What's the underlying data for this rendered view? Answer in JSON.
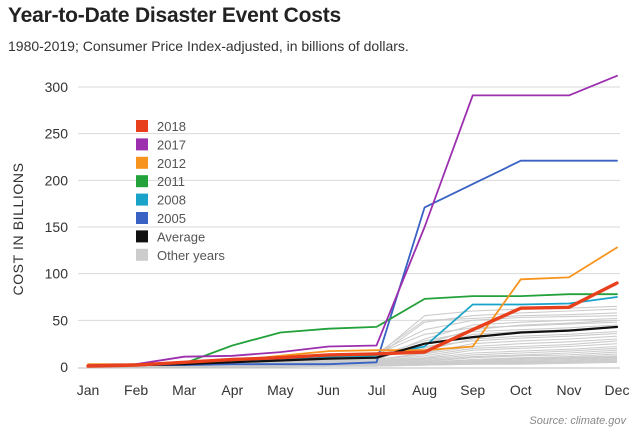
{
  "header": {
    "title": "Year-to-Date Disaster Event Costs",
    "subtitle": "1980-2019; Consumer Price Index-adjusted, in billions of dollars.",
    "source": "Source: climate.gov"
  },
  "chart_data": {
    "type": "line",
    "title": "Year-to-Date Disaster Event Costs",
    "xlabel": "",
    "ylabel": "COST IN BILLIONS",
    "ylim": [
      0,
      310
    ],
    "yticks": [
      0,
      50,
      100,
      150,
      200,
      250,
      300
    ],
    "grid": true,
    "legend_position": "upper-left",
    "categories": [
      "Jan",
      "Feb",
      "Mar",
      "Apr",
      "May",
      "Jun",
      "Jul",
      "Aug",
      "Sep",
      "Oct",
      "Nov",
      "Dec"
    ],
    "series": [
      {
        "name": "2018",
        "color": "#e8401c",
        "values": [
          1,
          2,
          5,
          8,
          10,
          13,
          14,
          16,
          40,
          63,
          64,
          90
        ]
      },
      {
        "name": "2017",
        "color": "#9b2fae",
        "values": [
          2,
          3,
          11,
          12,
          16,
          22,
          23,
          150,
          291,
          291,
          291,
          312
        ]
      },
      {
        "name": "2012",
        "color": "#f7941d",
        "values": [
          3,
          3,
          4,
          7,
          12,
          17,
          18,
          18,
          22,
          94,
          96,
          128
        ]
      },
      {
        "name": "2011",
        "color": "#23a13a",
        "values": [
          1,
          3,
          4,
          23,
          37,
          41,
          43,
          73,
          76,
          76,
          78,
          78
        ]
      },
      {
        "name": "2008",
        "color": "#1aa3c8",
        "values": [
          1,
          2,
          3,
          6,
          8,
          11,
          12,
          22,
          67,
          67,
          68,
          75
        ]
      },
      {
        "name": "2005",
        "color": "#3a62c4",
        "values": [
          1,
          2,
          2,
          3,
          3,
          3,
          5,
          171,
          196,
          221,
          221,
          221
        ]
      },
      {
        "name": "Average",
        "color": "#111111",
        "values": [
          1,
          2,
          3,
          5,
          7,
          9,
          10,
          25,
          32,
          37,
          39,
          43
        ]
      }
    ],
    "other_years_label": "Other years",
    "other_years_color": "#cccccc",
    "other_years": [
      [
        2,
        3,
        4,
        6,
        8,
        10,
        12,
        55,
        60,
        62,
        63,
        65
      ],
      [
        1,
        2,
        3,
        5,
        7,
        9,
        11,
        48,
        55,
        58,
        60,
        62
      ],
      [
        1,
        2,
        4,
        7,
        9,
        12,
        14,
        50,
        52,
        55,
        56,
        58
      ],
      [
        2,
        3,
        5,
        8,
        10,
        12,
        15,
        40,
        50,
        53,
        54,
        55
      ],
      [
        1,
        2,
        3,
        4,
        6,
        8,
        9,
        30,
        45,
        48,
        50,
        52
      ],
      [
        1,
        2,
        3,
        5,
        6,
        7,
        8,
        25,
        40,
        45,
        47,
        50
      ],
      [
        0,
        1,
        2,
        4,
        6,
        8,
        10,
        20,
        35,
        38,
        40,
        42
      ],
      [
        1,
        2,
        3,
        5,
        7,
        9,
        11,
        18,
        30,
        33,
        35,
        38
      ],
      [
        0,
        1,
        2,
        3,
        5,
        7,
        8,
        15,
        25,
        28,
        30,
        33
      ],
      [
        1,
        1,
        2,
        3,
        4,
        6,
        7,
        14,
        22,
        25,
        27,
        30
      ],
      [
        0,
        1,
        2,
        3,
        4,
        5,
        6,
        12,
        20,
        22,
        24,
        28
      ],
      [
        1,
        1,
        2,
        3,
        4,
        5,
        6,
        10,
        18,
        20,
        22,
        25
      ],
      [
        0,
        1,
        1,
        2,
        3,
        4,
        5,
        9,
        15,
        17,
        19,
        22
      ],
      [
        0,
        1,
        1,
        2,
        3,
        4,
        5,
        8,
        13,
        15,
        17,
        20
      ],
      [
        0,
        0,
        1,
        2,
        2,
        3,
        4,
        7,
        11,
        13,
        15,
        18
      ],
      [
        0,
        0,
        1,
        1,
        2,
        3,
        4,
        6,
        10,
        12,
        13,
        16
      ],
      [
        0,
        0,
        1,
        1,
        2,
        2,
        3,
        5,
        8,
        10,
        11,
        14
      ],
      [
        0,
        0,
        1,
        1,
        2,
        2,
        3,
        5,
        7,
        9,
        10,
        12
      ],
      [
        0,
        0,
        0,
        1,
        1,
        2,
        2,
        4,
        6,
        8,
        9,
        11
      ],
      [
        0,
        0,
        0,
        1,
        1,
        2,
        2,
        4,
        5,
        7,
        8,
        10
      ],
      [
        0,
        0,
        0,
        1,
        1,
        1,
        2,
        3,
        5,
        6,
        7,
        9
      ],
      [
        0,
        0,
        0,
        1,
        1,
        1,
        2,
        3,
        4,
        5,
        6,
        8
      ],
      [
        0,
        0,
        0,
        0,
        1,
        1,
        1,
        3,
        4,
        5,
        5,
        7
      ],
      [
        0,
        0,
        0,
        0,
        1,
        1,
        1,
        2,
        3,
        4,
        5,
        6
      ],
      [
        0,
        0,
        0,
        0,
        0,
        1,
        1,
        2,
        3,
        3,
        4,
        5
      ],
      [
        2,
        3,
        4,
        6,
        9,
        12,
        14,
        35,
        42,
        44,
        46,
        48
      ],
      [
        1,
        2,
        4,
        6,
        8,
        10,
        12,
        28,
        38,
        40,
        42,
        45
      ],
      [
        1,
        2,
        3,
        5,
        6,
        8,
        9,
        22,
        28,
        31,
        33,
        36
      ]
    ]
  }
}
